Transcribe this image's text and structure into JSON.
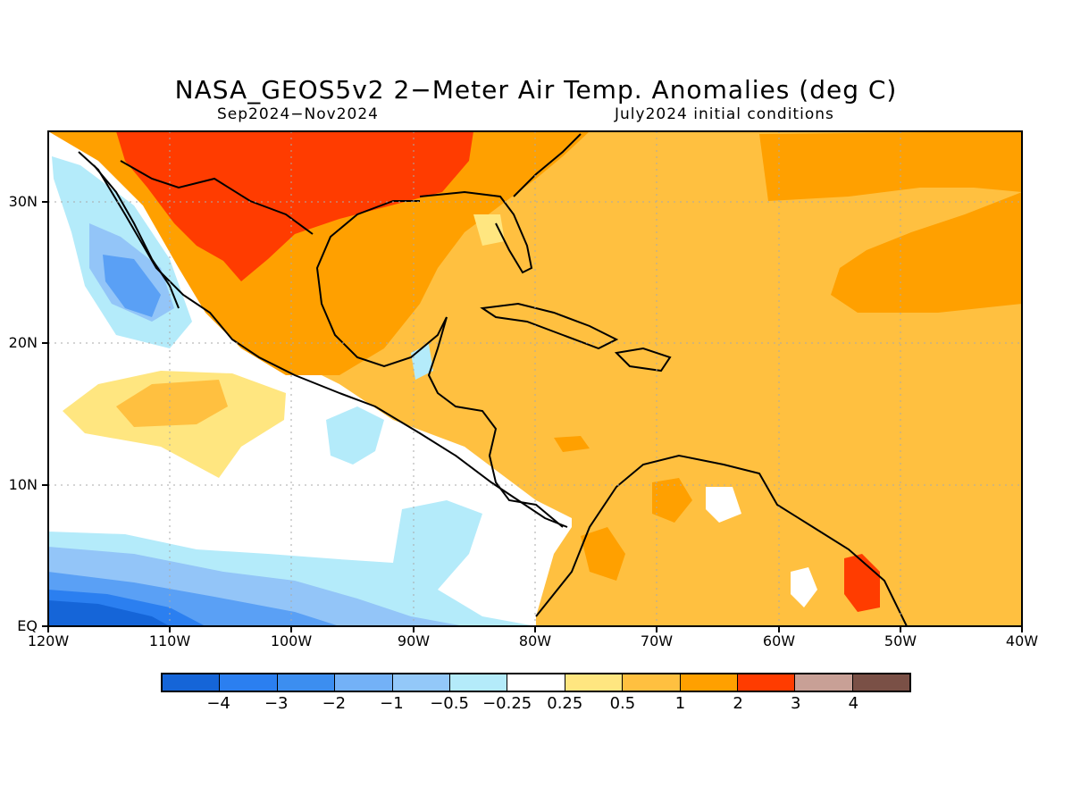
{
  "title": "NASA_GEOS5v2 2−Meter Air Temp. Anomalies (deg C)",
  "subtitle_left": "Sep2024−Nov2024",
  "subtitle_right": "July2024 initial conditions",
  "map": {
    "lon_range": [
      -120,
      -40
    ],
    "lat_range": [
      0,
      35
    ],
    "lat_labels": [
      "30N",
      "20N",
      "10N",
      "EQ"
    ],
    "lon_labels": [
      "120W",
      "110W",
      "100W",
      "90W",
      "80W",
      "70W",
      "60W",
      "50W",
      "40W"
    ],
    "grid": true,
    "colors": {
      "neg4": "#1565d8",
      "neg3": "#2b7ff0",
      "neg2": "#5aa0f5",
      "neg1": "#93c5f8",
      "neg05": "#b4ebfa",
      "zero": "#ffffff",
      "pos025": "#ffe680",
      "pos05": "#ffc040",
      "pos1": "#ffa000",
      "pos2": "#ff3c00",
      "pos3": "#c8a096",
      "pos4": "#7a5046"
    }
  },
  "legend": {
    "colors": [
      "#1565d8",
      "#2b7ff0",
      "#3c8ef0",
      "#73b1f7",
      "#93c8f9",
      "#b4ebfa",
      "#ffffff",
      "#ffe680",
      "#ffc040",
      "#ffa000",
      "#ff3c00",
      "#c8a096",
      "#7a5046"
    ],
    "ticks": [
      "−4",
      "−3",
      "−2",
      "−1",
      "−0.5",
      "−0.25",
      "0.25",
      "0.5",
      "1",
      "2",
      "3",
      "4"
    ]
  }
}
